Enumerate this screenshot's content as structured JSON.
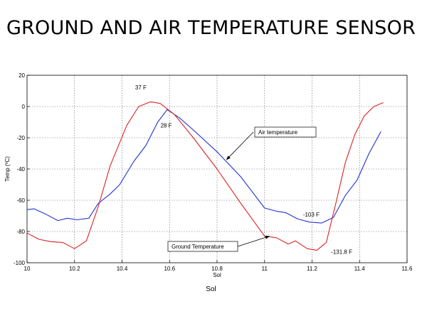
{
  "slide": {
    "title": "GROUND AND AIR TEMPERATURE SENSOR",
    "caption": "Sol"
  },
  "chart_data": {
    "type": "line",
    "title": "",
    "xlabel": "Sol",
    "ylabel": "Temp (ºC)",
    "xlim": [
      10,
      11.6
    ],
    "ylim": [
      -100,
      20
    ],
    "xticks": [
      "10",
      "10.2",
      "10.4",
      "10.6",
      "10.8",
      "11",
      "11.2",
      "11.4",
      "11.6"
    ],
    "xtick_values": [
      10,
      10.2,
      10.4,
      10.6,
      10.8,
      11,
      11.2,
      11.4,
      11.6
    ],
    "yticks": [
      "20",
      "0",
      "-20",
      "-40",
      "-60",
      "-80",
      "-100"
    ],
    "ytick_values": [
      20,
      0,
      -20,
      -40,
      -60,
      -80,
      -100
    ],
    "grid": true,
    "series": [
      {
        "name": "Air temperature",
        "color": "#2233cc",
        "x": [
          10,
          10.03,
          10.08,
          10.13,
          10.17,
          10.21,
          10.26,
          10.3,
          10.35,
          10.39,
          10.45,
          10.5,
          10.55,
          10.59,
          10.64,
          10.7,
          10.8,
          10.9,
          11.0,
          11.05,
          11.09,
          11.14,
          11.19,
          11.24,
          11.29,
          11.34,
          11.39,
          11.44,
          11.49
        ],
        "y": [
          -66,
          -65.5,
          -69,
          -73,
          -71.5,
          -72.5,
          -71.5,
          -62,
          -56,
          -50,
          -35,
          -25,
          -10,
          -2,
          -7,
          -15,
          -29,
          -45,
          -65,
          -67,
          -68,
          -72,
          -74,
          -74.6,
          -71,
          -57,
          -47,
          -30,
          -16
        ]
      },
      {
        "name": "Ground Temperature",
        "color": "#dd2222",
        "x": [
          10,
          10.05,
          10.1,
          10.15,
          10.2,
          10.25,
          10.3,
          10.35,
          10.42,
          10.47,
          10.52,
          10.56,
          10.62,
          10.7,
          10.8,
          10.9,
          11.0,
          11.05,
          11.1,
          11.13,
          11.18,
          11.22,
          11.26,
          11.3,
          11.34,
          11.38,
          11.42,
          11.46,
          11.5
        ],
        "y": [
          -81,
          -85,
          -86.5,
          -87,
          -91,
          -86,
          -64,
          -38,
          -12,
          0,
          3,
          2,
          -5,
          -20,
          -40,
          -62,
          -83,
          -84,
          -88,
          -86,
          -91,
          -92,
          -87,
          -62,
          -36,
          -18,
          -6,
          0,
          2.5
        ]
      }
    ],
    "annotations": [
      {
        "text": "37 F",
        "x": 10.5,
        "y": 4
      },
      {
        "text": "28 F",
        "x": 10.58,
        "y": -3
      },
      {
        "text": "Air temperature",
        "box": true,
        "target_series": "Air temperature",
        "target_x": 10.84,
        "target_y": -34
      },
      {
        "text": "Ground Temperature",
        "box": true,
        "target_series": "Ground Temperature",
        "target_x": 11.02,
        "target_y": -83
      },
      {
        "text": "-103 F",
        "x": 11.18,
        "y": -74
      },
      {
        "text": "-131.8 F",
        "x": 11.25,
        "y": -92
      }
    ]
  }
}
